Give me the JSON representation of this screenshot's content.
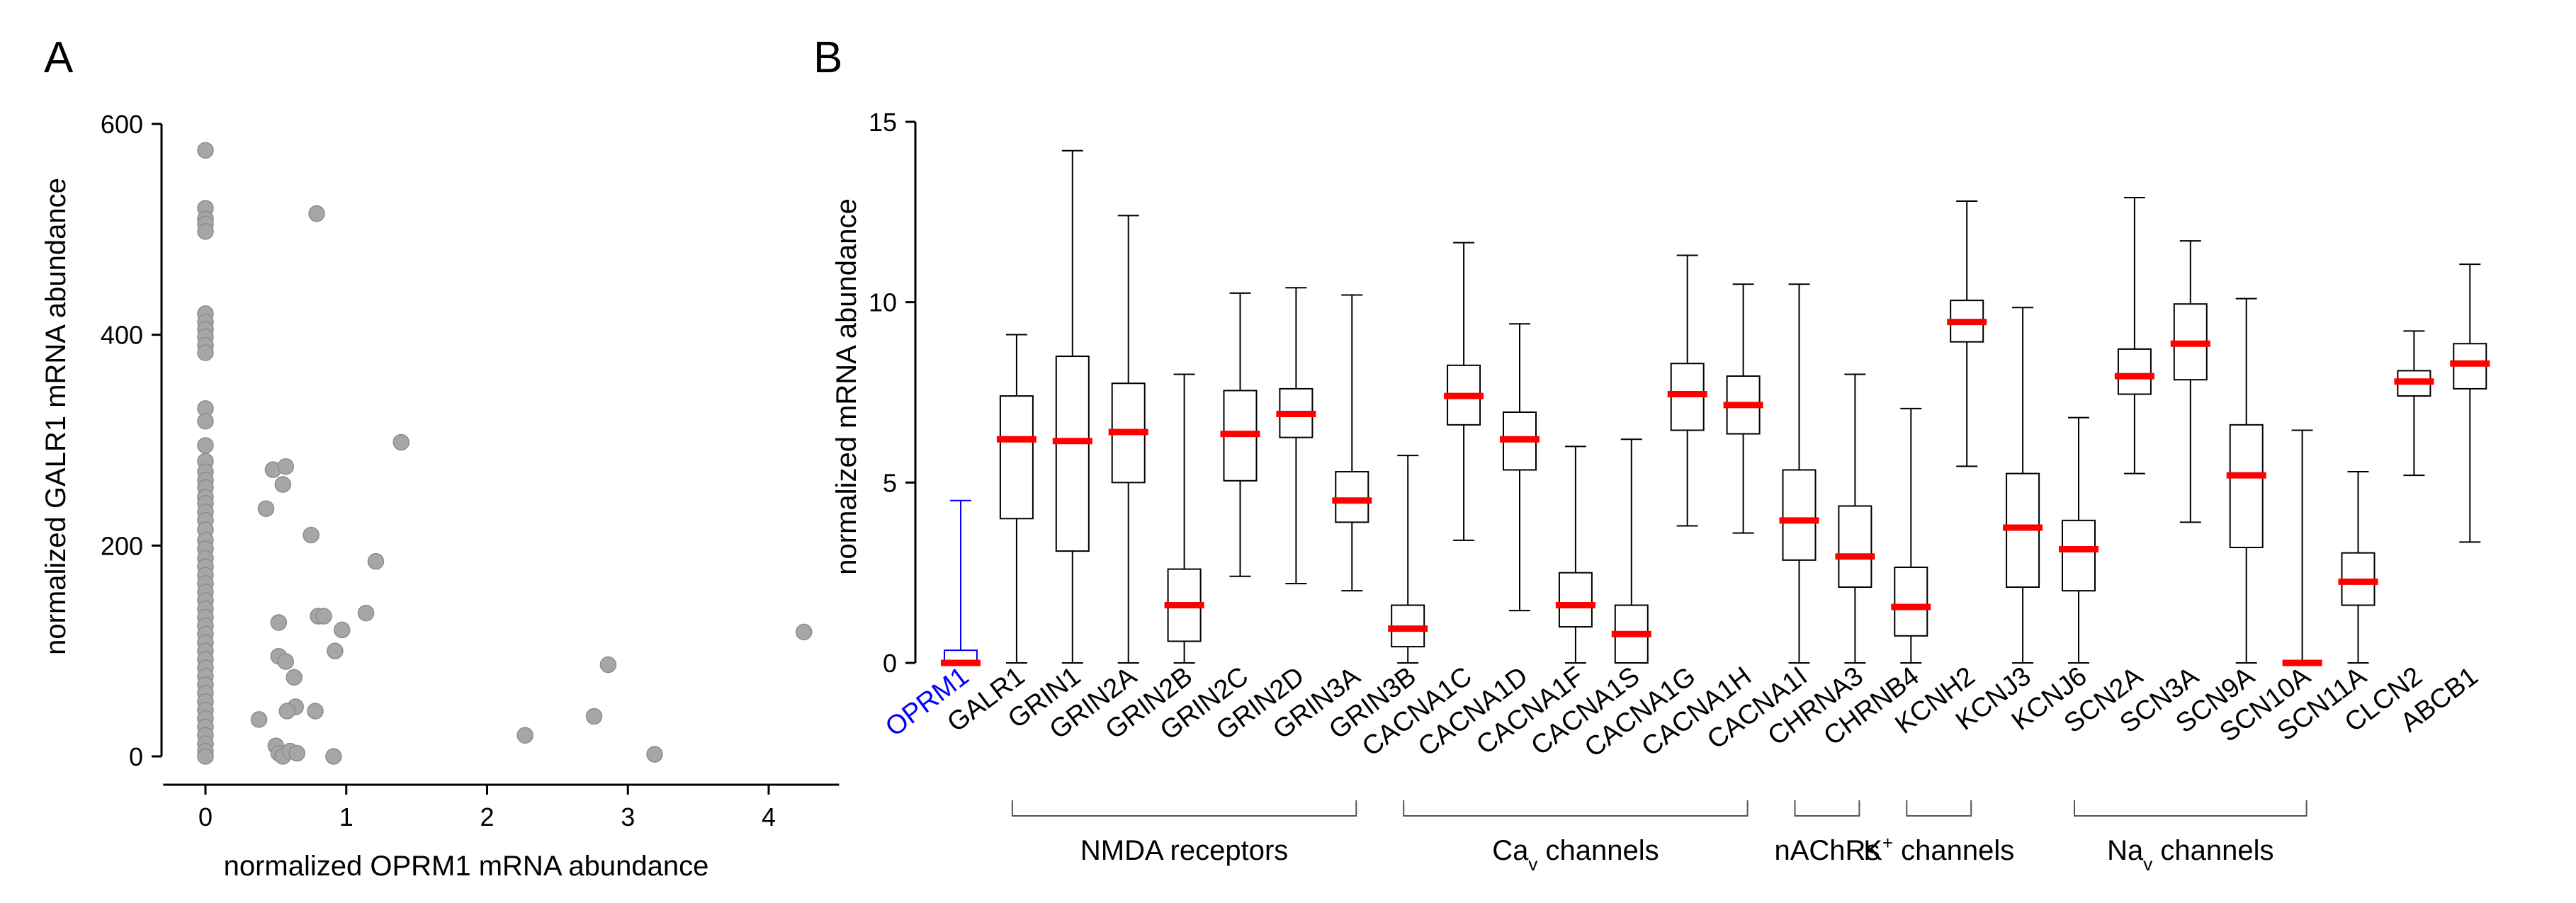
{
  "panel_a": {
    "letter": "A",
    "chart_data": {
      "type": "scatter",
      "title": "",
      "xlabel": "normalized OPRM1 mRNA abundance",
      "ylabel": "normalized GALR1 mRNA abundance",
      "xlim": [
        -0.3,
        4.5
      ],
      "ylim": [
        0,
        600
      ],
      "xticks": [
        0,
        1,
        2,
        3,
        4
      ],
      "yticks": [
        0,
        200,
        400,
        600
      ],
      "point_color": "#a6a6a6",
      "point_edge": "#8c8c8c",
      "points": [
        [
          0,
          575
        ],
        [
          0,
          520
        ],
        [
          0,
          510
        ],
        [
          0,
          505
        ],
        [
          0,
          498
        ],
        [
          0,
          420
        ],
        [
          0,
          412
        ],
        [
          0,
          405
        ],
        [
          0,
          398
        ],
        [
          0,
          390
        ],
        [
          0,
          383
        ],
        [
          0,
          330
        ],
        [
          0,
          318
        ],
        [
          0,
          295
        ],
        [
          0,
          280
        ],
        [
          0,
          270
        ],
        [
          0,
          262
        ],
        [
          0,
          255
        ],
        [
          0,
          246
        ],
        [
          0,
          240
        ],
        [
          0,
          232
        ],
        [
          0,
          224
        ],
        [
          0,
          215
        ],
        [
          0,
          205
        ],
        [
          0,
          197
        ],
        [
          0,
          188
        ],
        [
          0,
          180
        ],
        [
          0,
          172
        ],
        [
          0,
          164
        ],
        [
          0,
          156
        ],
        [
          0,
          148
        ],
        [
          0,
          140
        ],
        [
          0,
          132
        ],
        [
          0,
          124
        ],
        [
          0,
          116
        ],
        [
          0,
          108
        ],
        [
          0,
          100
        ],
        [
          0,
          92
        ],
        [
          0,
          84
        ],
        [
          0,
          76
        ],
        [
          0,
          68
        ],
        [
          0,
          60
        ],
        [
          0,
          52
        ],
        [
          0,
          44
        ],
        [
          0,
          36
        ],
        [
          0,
          28
        ],
        [
          0,
          20
        ],
        [
          0,
          12
        ],
        [
          0,
          5
        ],
        [
          0,
          0
        ],
        [
          0.79,
          515
        ],
        [
          1.39,
          298
        ],
        [
          0.48,
          272
        ],
        [
          0.57,
          275
        ],
        [
          0.55,
          258
        ],
        [
          0.43,
          235
        ],
        [
          0.75,
          210
        ],
        [
          1.21,
          185
        ],
        [
          0.8,
          133
        ],
        [
          0.84,
          133
        ],
        [
          1.14,
          136
        ],
        [
          0.52,
          127
        ],
        [
          0.97,
          120
        ],
        [
          0.92,
          100
        ],
        [
          0.52,
          95
        ],
        [
          0.57,
          90
        ],
        [
          0.63,
          75
        ],
        [
          0.64,
          47
        ],
        [
          0.58,
          43
        ],
        [
          0.78,
          43
        ],
        [
          0.38,
          35
        ],
        [
          0.5,
          10
        ],
        [
          0.52,
          3
        ],
        [
          0.55,
          0
        ],
        [
          0.6,
          5
        ],
        [
          0.65,
          3
        ],
        [
          0.91,
          0
        ],
        [
          2.27,
          20
        ],
        [
          2.76,
          38
        ],
        [
          2.86,
          87
        ],
        [
          3.19,
          2
        ],
        [
          4.25,
          118
        ]
      ]
    }
  },
  "panel_b": {
    "letter": "B",
    "chart_data": {
      "type": "box",
      "title": "",
      "xlabel": "",
      "ylabel": "normalized mRNA abundance",
      "ylim": [
        0,
        15
      ],
      "yticks": [
        0,
        5,
        10,
        15
      ],
      "median_color": "#ff0000",
      "highlight_color": "#0000ff",
      "categories": [
        "OPRM1",
        "GALR1",
        "GRIN1",
        "GRIN2A",
        "GRIN2B",
        "GRIN2C",
        "GRIN2D",
        "GRIN3A",
        "GRIN3B",
        "CACNA1C",
        "CACNA1D",
        "CACNA1F",
        "CACNA1S",
        "CACNA1G",
        "CACNA1H",
        "CACNA1I",
        "CHRNA3",
        "CHRNB4",
        "KCNH2",
        "KCNJ3",
        "KCNJ6",
        "SCN2A",
        "SCN3A",
        "SCN9A",
        "SCN10A",
        "SCN11A",
        "CLCN2",
        "ABCB1"
      ],
      "highlight": [
        "OPRM1"
      ],
      "boxes": [
        {
          "min": 0,
          "q1": 0,
          "median": 0,
          "q3": 0.35,
          "max": 4.5
        },
        {
          "min": 0,
          "q1": 4.0,
          "median": 6.2,
          "q3": 7.4,
          "max": 9.1
        },
        {
          "min": 0,
          "q1": 3.1,
          "median": 6.15,
          "q3": 8.5,
          "max": 14.2
        },
        {
          "min": 0,
          "q1": 5.0,
          "median": 6.4,
          "q3": 7.75,
          "max": 12.4
        },
        {
          "min": 0,
          "q1": 0.6,
          "median": 1.6,
          "q3": 2.6,
          "max": 8.0
        },
        {
          "min": 2.4,
          "q1": 5.05,
          "median": 6.35,
          "q3": 7.55,
          "max": 10.25
        },
        {
          "min": 2.2,
          "q1": 6.25,
          "median": 6.9,
          "q3": 7.6,
          "max": 10.4
        },
        {
          "min": 2.0,
          "q1": 3.9,
          "median": 4.5,
          "q3": 5.3,
          "max": 10.2
        },
        {
          "min": 0,
          "q1": 0.45,
          "median": 0.95,
          "q3": 1.6,
          "max": 5.75
        },
        {
          "min": 3.4,
          "q1": 6.6,
          "median": 7.4,
          "q3": 8.25,
          "max": 11.65
        },
        {
          "min": 1.45,
          "q1": 5.35,
          "median": 6.2,
          "q3": 6.95,
          "max": 9.4
        },
        {
          "min": 0,
          "q1": 1.0,
          "median": 1.6,
          "q3": 2.5,
          "max": 6.0
        },
        {
          "min": 0,
          "q1": 0,
          "median": 0.8,
          "q3": 1.6,
          "max": 6.2
        },
        {
          "min": 3.8,
          "q1": 6.45,
          "median": 7.45,
          "q3": 8.3,
          "max": 11.3
        },
        {
          "min": 3.6,
          "q1": 6.35,
          "median": 7.15,
          "q3": 7.95,
          "max": 10.5
        },
        {
          "min": 0,
          "q1": 2.85,
          "median": 3.95,
          "q3": 5.35,
          "max": 10.5
        },
        {
          "min": 0,
          "q1": 2.1,
          "median": 2.95,
          "q3": 4.35,
          "max": 8.0
        },
        {
          "min": 0,
          "q1": 0.75,
          "median": 1.55,
          "q3": 2.65,
          "max": 7.05
        },
        {
          "min": 5.45,
          "q1": 8.9,
          "median": 9.45,
          "q3": 10.05,
          "max": 12.8
        },
        {
          "min": 0,
          "q1": 2.1,
          "median": 3.75,
          "q3": 5.25,
          "max": 9.85
        },
        {
          "min": 0,
          "q1": 2.0,
          "median": 3.15,
          "q3": 3.95,
          "max": 6.8
        },
        {
          "min": 5.25,
          "q1": 7.45,
          "median": 7.95,
          "q3": 8.7,
          "max": 12.9
        },
        {
          "min": 3.9,
          "q1": 7.85,
          "median": 8.85,
          "q3": 9.95,
          "max": 11.7
        },
        {
          "min": 0,
          "q1": 3.2,
          "median": 5.2,
          "q3": 6.6,
          "max": 10.1
        },
        {
          "min": 0,
          "q1": 0,
          "median": 0,
          "q3": 0,
          "max": 6.45
        },
        {
          "min": 0,
          "q1": 1.6,
          "median": 2.25,
          "q3": 3.05,
          "max": 5.3
        },
        {
          "min": 5.2,
          "q1": 7.4,
          "median": 7.8,
          "q3": 8.1,
          "max": 9.2
        },
        {
          "min": 3.35,
          "q1": 7.6,
          "median": 8.3,
          "q3": 8.85,
          "max": 11.05
        }
      ],
      "groups": [
        {
          "label": "NMDA receptors",
          "from": "GALR1",
          "to": "GRIN3A"
        },
        {
          "label": "Ca",
          "sub": "v",
          "suffix": " channels",
          "from": "GRIN3B",
          "to": "CACNA1H"
        },
        {
          "label": "nAChRs",
          "from": "CACNA1I",
          "to": "CHRNA3"
        },
        {
          "label": "K",
          "sup": "+",
          "suffix": " channels",
          "from": "CHRNB4",
          "to": "KCNH2"
        },
        {
          "label": "Na",
          "sub": "v",
          "suffix": " channels",
          "from": "KCNJ6",
          "to": "SCN10A"
        }
      ]
    }
  }
}
